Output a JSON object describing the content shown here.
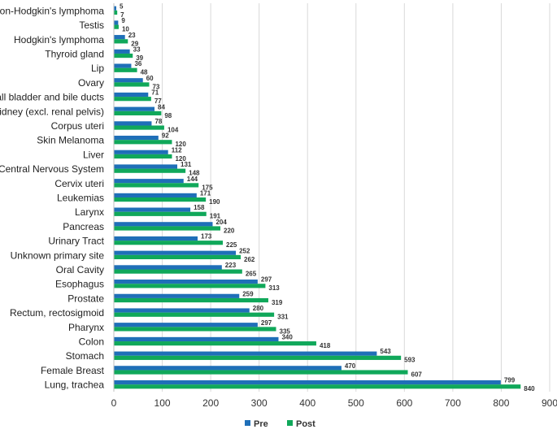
{
  "chart_data": {
    "type": "bar",
    "orientation": "horizontal",
    "title": "",
    "xlabel": "",
    "ylabel": "",
    "xlim": [
      0,
      900
    ],
    "x_ticks": [
      "0",
      "100",
      "200",
      "300",
      "400",
      "500",
      "600",
      "700",
      "800",
      "900"
    ],
    "x_tick_values": [
      0,
      100,
      200,
      300,
      400,
      500,
      600,
      700,
      800,
      900
    ],
    "grid": "vertical",
    "legend_position": "bottom",
    "categories": [
      "Non-Hodgkin's lymphoma",
      "Testis",
      "Hodgkin's lymphoma",
      "Thyroid gland",
      "Lip",
      "Ovary",
      "Gall bladder and bile ducts",
      "Kidney (excl. renal pelvis)",
      "Corpus uteri",
      "Skin Melanoma",
      "Liver",
      "Central Nervous System",
      "Cervix uteri",
      "Leukemias",
      "Larynx",
      "Pancreas",
      "Urinary Tract",
      "Unknown primary site",
      "Oral Cavity",
      "Esophagus",
      "Prostate",
      "Rectum, rectosigmoid",
      "Pharynx",
      "Colon",
      "Stomach",
      "Female Breast",
      "Lung, trachea"
    ],
    "series": [
      {
        "name": "Pre",
        "color": "#1F6FB8",
        "values": [
          5,
          9,
          23,
          33,
          36,
          60,
          71,
          84,
          78,
          92,
          112,
          131,
          144,
          171,
          158,
          204,
          173,
          252,
          223,
          297,
          259,
          280,
          297,
          340,
          543,
          470,
          799
        ]
      },
      {
        "name": "Post",
        "color": "#10A85A",
        "values": [
          7,
          10,
          29,
          39,
          48,
          73,
          77,
          98,
          104,
          120,
          120,
          148,
          175,
          190,
          191,
          220,
          225,
          262,
          265,
          313,
          319,
          331,
          335,
          418,
          593,
          607,
          840
        ]
      }
    ]
  }
}
